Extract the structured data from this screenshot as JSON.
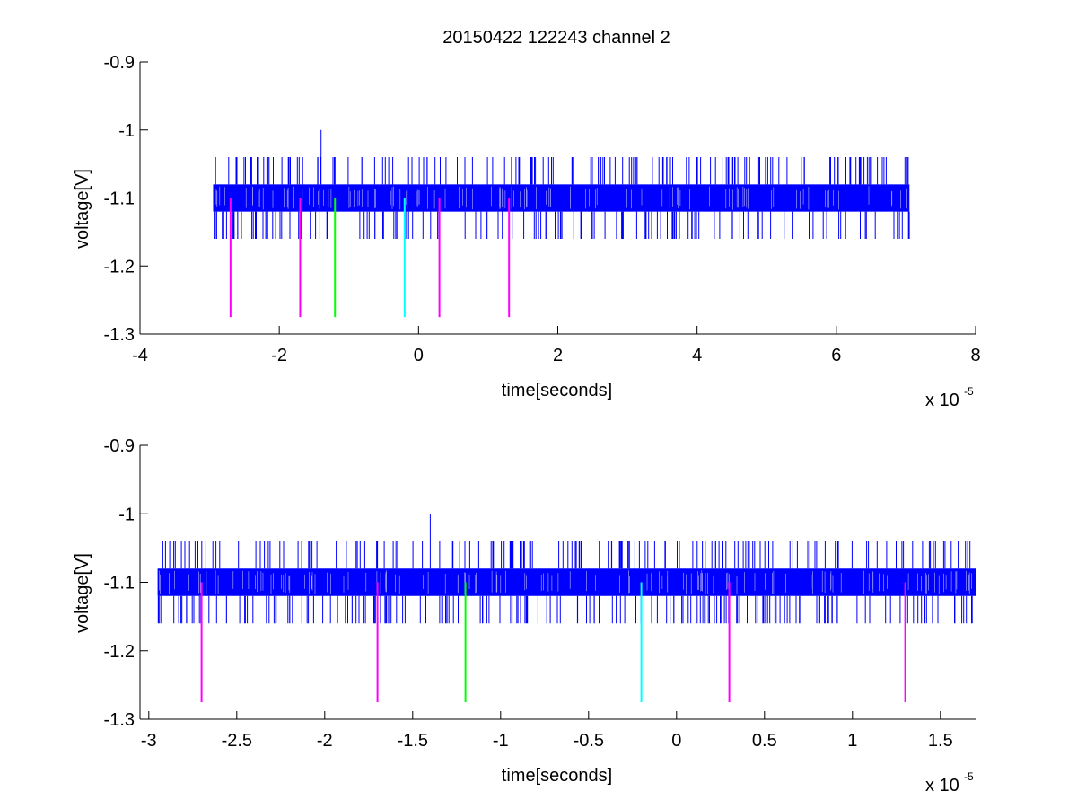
{
  "figure_title": "20150422 122243 channel 2",
  "colors": {
    "signal": "#0000ff",
    "marker_magenta": "#ff00ff",
    "marker_green": "#00ff00",
    "marker_cyan": "#00ffff",
    "axes": "#000000",
    "background": "#ffffff"
  },
  "chart_data": [
    {
      "type": "line",
      "title": "20150422 122243 channel 2",
      "xlabel": "time[seconds]",
      "ylabel": "voltage[V]",
      "x_exponent": "x 10",
      "x_exponent_power": "-5",
      "xlim": [
        -4e-05,
        8e-05
      ],
      "ylim": [
        -1.3,
        -0.9
      ],
      "y_reversed": true,
      "grid": false,
      "xticks": [
        -4e-05,
        -2e-05,
        0,
        2e-05,
        4e-05,
        6e-05,
        8e-05
      ],
      "xtick_labels": [
        "-4",
        "-2",
        "0",
        "2",
        "4",
        "6",
        "8"
      ],
      "yticks": [
        -1.3,
        -1.2,
        -1.1,
        -1.0,
        -0.9
      ],
      "ytick_labels": [
        "-1.3",
        "-1.2",
        "-1.1",
        "-1",
        "-0.9"
      ],
      "series": [
        {
          "color": "#0000ff",
          "x_range": [
            -2.95e-05,
            7.05e-05
          ],
          "band": [
            -1.12,
            -1.08
          ],
          "spikes_up_to": -1.04,
          "spikes_down_to": -1.16,
          "peak": {
            "x": -1.4e-05,
            "y": -1.0
          }
        }
      ],
      "markers": [
        {
          "x": -2.7e-05,
          "y_top": -1.1,
          "y_bottom": -1.275,
          "color": "#ff00ff"
        },
        {
          "x": -1.7e-05,
          "y_top": -1.1,
          "y_bottom": -1.275,
          "color": "#ff00ff"
        },
        {
          "x": -1.2e-05,
          "y_top": -1.1,
          "y_bottom": -1.275,
          "color": "#00ff00"
        },
        {
          "x": -2e-06,
          "y_top": -1.1,
          "y_bottom": -1.275,
          "color": "#00ffff"
        },
        {
          "x": 3e-06,
          "y_top": -1.1,
          "y_bottom": -1.275,
          "color": "#ff00ff"
        },
        {
          "x": 1.3e-05,
          "y_top": -1.1,
          "y_bottom": -1.275,
          "color": "#ff00ff"
        }
      ]
    },
    {
      "type": "line",
      "title": "",
      "xlabel": "time[seconds]",
      "ylabel": "voltage[V]",
      "x_exponent": "x 10",
      "x_exponent_power": "-5",
      "xlim": [
        -3.05e-05,
        1.7e-05
      ],
      "ylim": [
        -1.3,
        -0.9
      ],
      "y_reversed": true,
      "grid": false,
      "xticks": [
        -3e-05,
        -2.5e-05,
        -2e-05,
        -1.5e-05,
        -1e-05,
        -5e-06,
        0,
        5e-06,
        1e-05,
        1.5e-05
      ],
      "xtick_labels": [
        "-3",
        "-2.5",
        "-2",
        "-1.5",
        "-1",
        "-0.5",
        "0",
        "0.5",
        "1",
        "1.5"
      ],
      "yticks": [
        -1.3,
        -1.2,
        -1.1,
        -1.0,
        -0.9
      ],
      "ytick_labels": [
        "-1.3",
        "-1.2",
        "-1.1",
        "-1",
        "-0.9"
      ],
      "series": [
        {
          "color": "#0000ff",
          "x_range": [
            -2.95e-05,
            1.7e-05
          ],
          "band": [
            -1.12,
            -1.08
          ],
          "spikes_up_to": -1.04,
          "spikes_down_to": -1.16,
          "peak": {
            "x": -1.4e-05,
            "y": -1.0
          }
        }
      ],
      "markers": [
        {
          "x": -2.7e-05,
          "y_top": -1.1,
          "y_bottom": -1.275,
          "color": "#ff00ff"
        },
        {
          "x": -1.7e-05,
          "y_top": -1.1,
          "y_bottom": -1.275,
          "color": "#ff00ff"
        },
        {
          "x": -1.2e-05,
          "y_top": -1.1,
          "y_bottom": -1.275,
          "color": "#00ff00"
        },
        {
          "x": -2e-06,
          "y_top": -1.1,
          "y_bottom": -1.275,
          "color": "#00ffff"
        },
        {
          "x": 3e-06,
          "y_top": -1.1,
          "y_bottom": -1.275,
          "color": "#ff00ff"
        },
        {
          "x": 1.3e-05,
          "y_top": -1.1,
          "y_bottom": -1.275,
          "color": "#ff00ff"
        }
      ]
    }
  ]
}
